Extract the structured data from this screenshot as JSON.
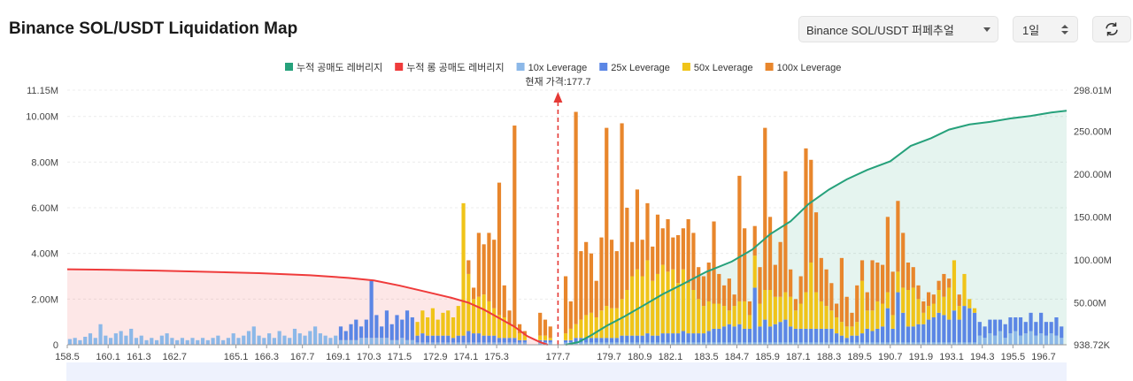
{
  "header": {
    "title": "Binance SOL/USDT Liquidation Map",
    "market_select": "Binance SOL/USDT 퍼페추얼",
    "range_select": "1일",
    "refresh_icon": "refresh-icon"
  },
  "colors": {
    "short_cum": "#26a17b",
    "long_cum": "#ef3b3b",
    "lev10": "#8cb8e8",
    "lev25": "#5b86e5",
    "lev50": "#f0c419",
    "lev100": "#e8862c",
    "current_price": "#e53935"
  },
  "chart_data": {
    "type": "bar",
    "legend_position": "top-center",
    "current_price_label": "현재 가격:177.7",
    "current_price": 177.7,
    "x_range": [
      158.5,
      197.6
    ],
    "x_ticks": [
      "158.5",
      "160.1",
      "161.3",
      "162.7",
      "165.1",
      "166.3",
      "167.7",
      "169.1",
      "170.3",
      "171.5",
      "172.9",
      "174.1",
      "175.3",
      "177.7",
      "179.7",
      "180.9",
      "182.1",
      "183.5",
      "184.7",
      "185.9",
      "187.1",
      "188.3",
      "189.5",
      "190.7",
      "191.9",
      "193.1",
      "194.3",
      "195.5",
      "196.7"
    ],
    "y_left": {
      "ticks": [
        "0",
        "2.00M",
        "4.00M",
        "6.00M",
        "8.00M",
        "10.00M",
        "11.15M"
      ],
      "range": [
        0,
        11150000
      ]
    },
    "y_right": {
      "ticks": [
        "938.72K",
        "50.00M",
        "100.00M",
        "150.00M",
        "200.00M",
        "250.00M",
        "298.01M"
      ],
      "range": [
        938720,
        298010000
      ]
    },
    "legend": [
      {
        "key": "short_cum",
        "label": "누적 공매도 레버리지"
      },
      {
        "key": "long_cum",
        "label": "누적 롱 공매도 레버리지"
      },
      {
        "key": "lev10",
        "label": "10x Leverage"
      },
      {
        "key": "lev25",
        "label": "25x Leverage"
      },
      {
        "key": "lev50",
        "label": "50x Leverage"
      },
      {
        "key": "lev100",
        "label": "100x Leverage"
      }
    ],
    "bars": [
      [
        158.6,
        0.25,
        0,
        0,
        0
      ],
      [
        158.8,
        0.3,
        0,
        0,
        0
      ],
      [
        159.0,
        0.2,
        0,
        0,
        0
      ],
      [
        159.2,
        0.35,
        0,
        0,
        0
      ],
      [
        159.4,
        0.5,
        0,
        0,
        0
      ],
      [
        159.6,
        0.3,
        0,
        0,
        0
      ],
      [
        159.8,
        0.9,
        0,
        0,
        0
      ],
      [
        160.0,
        0.4,
        0,
        0,
        0
      ],
      [
        160.2,
        0.3,
        0,
        0,
        0
      ],
      [
        160.4,
        0.5,
        0,
        0,
        0
      ],
      [
        160.6,
        0.6,
        0,
        0,
        0
      ],
      [
        160.8,
        0.4,
        0,
        0,
        0
      ],
      [
        161.0,
        0.7,
        0,
        0,
        0
      ],
      [
        161.2,
        0.3,
        0,
        0,
        0
      ],
      [
        161.4,
        0.4,
        0,
        0,
        0
      ],
      [
        161.6,
        0.2,
        0,
        0,
        0
      ],
      [
        161.8,
        0.3,
        0,
        0,
        0
      ],
      [
        162.0,
        0.2,
        0,
        0,
        0
      ],
      [
        162.2,
        0.4,
        0,
        0,
        0
      ],
      [
        162.4,
        0.5,
        0,
        0,
        0
      ],
      [
        162.6,
        0.3,
        0,
        0,
        0
      ],
      [
        162.8,
        0.2,
        0,
        0,
        0
      ],
      [
        163.0,
        0.3,
        0,
        0,
        0
      ],
      [
        163.2,
        0.2,
        0,
        0,
        0
      ],
      [
        163.4,
        0.3,
        0,
        0,
        0
      ],
      [
        163.6,
        0.2,
        0,
        0,
        0
      ],
      [
        163.8,
        0.3,
        0,
        0,
        0
      ],
      [
        164.0,
        0.2,
        0,
        0,
        0
      ],
      [
        164.2,
        0.3,
        0,
        0,
        0
      ],
      [
        164.4,
        0.4,
        0,
        0,
        0
      ],
      [
        164.6,
        0.2,
        0,
        0,
        0
      ],
      [
        164.8,
        0.3,
        0,
        0,
        0
      ],
      [
        165.0,
        0.5,
        0,
        0,
        0
      ],
      [
        165.2,
        0.3,
        0,
        0,
        0
      ],
      [
        165.4,
        0.4,
        0,
        0,
        0
      ],
      [
        165.6,
        0.6,
        0,
        0,
        0
      ],
      [
        165.8,
        0.8,
        0,
        0,
        0
      ],
      [
        166.0,
        0.4,
        0,
        0,
        0
      ],
      [
        166.2,
        0.3,
        0,
        0,
        0
      ],
      [
        166.4,
        0.5,
        0,
        0,
        0
      ],
      [
        166.6,
        0.3,
        0,
        0,
        0
      ],
      [
        166.8,
        0.6,
        0,
        0,
        0
      ],
      [
        167.0,
        0.4,
        0,
        0,
        0
      ],
      [
        167.2,
        0.3,
        0,
        0,
        0
      ],
      [
        167.4,
        0.7,
        0,
        0,
        0
      ],
      [
        167.6,
        0.5,
        0,
        0,
        0
      ],
      [
        167.8,
        0.4,
        0,
        0,
        0
      ],
      [
        168.0,
        0.6,
        0,
        0,
        0
      ],
      [
        168.2,
        0.8,
        0,
        0,
        0
      ],
      [
        168.4,
        0.5,
        0,
        0,
        0
      ],
      [
        168.6,
        0.4,
        0,
        0,
        0
      ],
      [
        168.8,
        0.3,
        0,
        0,
        0
      ],
      [
        169.0,
        0.4,
        0,
        0,
        0
      ],
      [
        169.2,
        0.2,
        0.6,
        0,
        0
      ],
      [
        169.4,
        0.2,
        0.4,
        0,
        0
      ],
      [
        169.6,
        0.2,
        0.7,
        0,
        0
      ],
      [
        169.8,
        0.2,
        0.9,
        0,
        0
      ],
      [
        170.0,
        0.3,
        0.5,
        0,
        0
      ],
      [
        170.2,
        0.3,
        0.8,
        0,
        0
      ],
      [
        170.4,
        0.3,
        2.5,
        0,
        0
      ],
      [
        170.6,
        0.3,
        1.0,
        0,
        0
      ],
      [
        170.8,
        0.3,
        0.5,
        0,
        0
      ],
      [
        171.0,
        0.3,
        1.2,
        0,
        0
      ],
      [
        171.2,
        0.2,
        0.7,
        0,
        0
      ],
      [
        171.4,
        0.2,
        1.1,
        0,
        0
      ],
      [
        171.6,
        0.3,
        0.8,
        0,
        0
      ],
      [
        171.8,
        0.2,
        1.3,
        0,
        0
      ],
      [
        172.0,
        0.2,
        1.0,
        0,
        0
      ],
      [
        172.2,
        0.1,
        0.3,
        0.6,
        0
      ],
      [
        172.4,
        0.1,
        0.4,
        1.0,
        0
      ],
      [
        172.6,
        0.1,
        0.3,
        0.8,
        0
      ],
      [
        172.8,
        0.1,
        0.3,
        1.2,
        0
      ],
      [
        173.0,
        0.1,
        0.3,
        0.7,
        0
      ],
      [
        173.2,
        0.1,
        0.3,
        1.0,
        0
      ],
      [
        173.4,
        0.1,
        0.3,
        1.1,
        0
      ],
      [
        173.6,
        0.1,
        0.2,
        0.9,
        0
      ],
      [
        173.8,
        0.1,
        0.3,
        1.3,
        0
      ],
      [
        174.0,
        0.1,
        0.3,
        5.8,
        0
      ],
      [
        174.2,
        0.1,
        0.5,
        2.5,
        0.6
      ],
      [
        174.4,
        0.1,
        0.4,
        1.5,
        0.5
      ],
      [
        174.6,
        0.1,
        0.4,
        1.6,
        2.8
      ],
      [
        174.8,
        0.1,
        0.3,
        1.8,
        2.2
      ],
      [
        175.0,
        0.1,
        0.3,
        1.5,
        3.0
      ],
      [
        175.2,
        0.1,
        0.3,
        1.2,
        3.0
      ],
      [
        175.4,
        0.1,
        0.2,
        1.0,
        5.8
      ],
      [
        175.6,
        0.1,
        0.2,
        0.9,
        1.4
      ],
      [
        175.8,
        0.1,
        0.2,
        0.6,
        0.6
      ],
      [
        176.0,
        0.1,
        0.2,
        0.5,
        8.8
      ],
      [
        176.2,
        0.1,
        0.1,
        0.3,
        0.4
      ],
      [
        176.4,
        0.1,
        0.1,
        0.2,
        0.2
      ],
      [
        177.0,
        0.1,
        0.1,
        0.2,
        1.0
      ],
      [
        177.2,
        0.1,
        0.1,
        0.2,
        0.7
      ],
      [
        177.4,
        0.1,
        0.1,
        0.1,
        0.5
      ],
      [
        178.0,
        0.1,
        0.1,
        0.3,
        2.5
      ],
      [
        178.2,
        0.1,
        0.1,
        0.5,
        1.2
      ],
      [
        178.4,
        0.1,
        0.2,
        0.6,
        9.3
      ],
      [
        178.6,
        0.1,
        0.2,
        0.8,
        3.0
      ],
      [
        178.8,
        0.1,
        0.2,
        1.0,
        3.2
      ],
      [
        179.0,
        0.1,
        0.2,
        1.1,
        2.6
      ],
      [
        179.2,
        0.1,
        0.2,
        0.9,
        1.6
      ],
      [
        179.4,
        0.1,
        0.2,
        1.2,
        3.2
      ],
      [
        179.6,
        0.1,
        0.2,
        1.4,
        7.8
      ],
      [
        179.8,
        0.1,
        0.2,
        1.3,
        3.0
      ],
      [
        180.0,
        0.1,
        0.2,
        1.3,
        2.5
      ],
      [
        180.2,
        0.1,
        0.3,
        1.6,
        7.7
      ],
      [
        180.4,
        0.1,
        0.3,
        2.0,
        3.6
      ],
      [
        180.6,
        0.1,
        0.3,
        2.6,
        1.5
      ],
      [
        180.8,
        0.1,
        0.3,
        2.9,
        3.5
      ],
      [
        181.0,
        0.1,
        0.3,
        2.6,
        1.6
      ],
      [
        181.2,
        0.1,
        0.4,
        3.2,
        2.5
      ],
      [
        181.4,
        0.1,
        0.3,
        2.4,
        1.5
      ],
      [
        181.6,
        0.1,
        0.3,
        2.7,
        2.6
      ],
      [
        181.8,
        0.1,
        0.4,
        3.0,
        1.6
      ],
      [
        182.0,
        0.1,
        0.4,
        2.7,
        2.3
      ],
      [
        182.2,
        0.1,
        0.4,
        2.8,
        1.4
      ],
      [
        182.4,
        0.1,
        0.4,
        2.2,
        2.1
      ],
      [
        182.6,
        0.1,
        0.5,
        2.7,
        1.8
      ],
      [
        182.8,
        0.1,
        0.4,
        2.2,
        2.8
      ],
      [
        183.0,
        0.1,
        0.4,
        1.9,
        2.5
      ],
      [
        183.2,
        0.1,
        0.4,
        1.5,
        1.4
      ],
      [
        183.4,
        0.1,
        0.4,
        1.2,
        1.3
      ],
      [
        183.6,
        0.1,
        0.5,
        1.3,
        1.7
      ],
      [
        183.8,
        0.1,
        0.6,
        1.1,
        3.6
      ],
      [
        184.0,
        0.1,
        0.6,
        1.1,
        1.3
      ],
      [
        184.2,
        0.1,
        0.7,
        0.9,
        0.9
      ],
      [
        184.4,
        0.1,
        0.8,
        0.6,
        1.4
      ],
      [
        184.6,
        0.1,
        0.7,
        0.9,
        0.5
      ],
      [
        184.8,
        0.1,
        0.8,
        1.0,
        5.5
      ],
      [
        185.0,
        0.1,
        0.6,
        1.2,
        3.2
      ],
      [
        185.2,
        0.1,
        0.6,
        0.6,
        0.6
      ],
      [
        185.4,
        0.1,
        2.4,
        1.4,
        1.3
      ],
      [
        185.6,
        0.1,
        0.7,
        1.0,
        1.6
      ],
      [
        185.8,
        0.1,
        1.0,
        1.3,
        7.1
      ],
      [
        186.0,
        0.1,
        0.7,
        1.6,
        3.2
      ],
      [
        186.2,
        0.1,
        0.8,
        1.2,
        1.4
      ],
      [
        186.4,
        0.1,
        0.9,
        1.1,
        2.4
      ],
      [
        186.6,
        0.1,
        1.0,
        1.2,
        5.3
      ],
      [
        186.8,
        0.1,
        0.7,
        1.3,
        1.2
      ],
      [
        187.0,
        0.1,
        0.6,
        0.8,
        0.5
      ],
      [
        187.2,
        0.1,
        0.6,
        1.1,
        1.2
      ],
      [
        187.4,
        0.1,
        0.6,
        1.6,
        6.3
      ],
      [
        187.6,
        0.1,
        0.6,
        2.9,
        4.5
      ],
      [
        187.8,
        0.1,
        0.6,
        1.6,
        3.5
      ],
      [
        188.0,
        0.1,
        0.6,
        1.2,
        1.9
      ],
      [
        188.2,
        0.1,
        0.6,
        1.0,
        1.6
      ],
      [
        188.4,
        0.1,
        0.6,
        0.8,
        1.2
      ],
      [
        188.6,
        0.1,
        0.4,
        0.7,
        0.6
      ],
      [
        188.8,
        0.1,
        0.3,
        0.6,
        2.8
      ],
      [
        189.0,
        0.1,
        0.2,
        0.5,
        1.3
      ],
      [
        189.2,
        0.1,
        0.3,
        0.4,
        0.6
      ],
      [
        189.4,
        0.1,
        0.3,
        0.6,
        1.6
      ],
      [
        189.6,
        0.1,
        0.4,
        2.3,
        0.9
      ],
      [
        189.8,
        0.1,
        0.6,
        0.8,
        0.8
      ],
      [
        190.0,
        0.1,
        0.5,
        0.9,
        2.2
      ],
      [
        190.2,
        0.1,
        0.6,
        1.2,
        1.7
      ],
      [
        190.4,
        0.1,
        0.7,
        1.0,
        1.7
      ],
      [
        190.6,
        0.1,
        1.5,
        0.7,
        3.3
      ],
      [
        190.8,
        0.1,
        0.6,
        0.6,
        1.9
      ],
      [
        191.0,
        0.1,
        2.2,
        0.9,
        3.1
      ],
      [
        191.2,
        0.1,
        1.3,
        1.1,
        2.4
      ],
      [
        191.4,
        0.1,
        0.7,
        1.6,
        1.2
      ],
      [
        191.6,
        0.1,
        0.7,
        1.7,
        0.9
      ],
      [
        191.8,
        0.1,
        0.8,
        1.1,
        0.6
      ],
      [
        192.0,
        0.1,
        0.8,
        0.5,
        0.5
      ],
      [
        192.2,
        0.1,
        1.0,
        0.6,
        0.6
      ],
      [
        192.4,
        0.1,
        1.1,
        0.6,
        0.4
      ],
      [
        192.6,
        0.1,
        1.3,
        1.0,
        0.4
      ],
      [
        192.8,
        0.1,
        1.2,
        0.8,
        1.0
      ],
      [
        193.0,
        0.1,
        1.0,
        1.4,
        0.4
      ],
      [
        193.2,
        0.1,
        1.4,
        2.2,
        0.0
      ],
      [
        193.4,
        0.1,
        1.0,
        0.6,
        0.5
      ],
      [
        193.6,
        0.1,
        1.6,
        1.4,
        0.0
      ],
      [
        193.8,
        0.1,
        1.5,
        0.4,
        0.0
      ],
      [
        194.0,
        0.1,
        1.3,
        0.2,
        0.0
      ],
      [
        194.2,
        0.4,
        0.6,
        0,
        0
      ],
      [
        194.4,
        0.3,
        0.5,
        0,
        0
      ],
      [
        194.6,
        0.5,
        0.6,
        0,
        0
      ],
      [
        194.8,
        0.4,
        0.7,
        0,
        0
      ],
      [
        195.0,
        0.6,
        0.5,
        0,
        0
      ],
      [
        195.2,
        0.3,
        0.6,
        0,
        0
      ],
      [
        195.4,
        0.5,
        0.7,
        0,
        0
      ],
      [
        195.6,
        0.6,
        0.6,
        0,
        0
      ],
      [
        195.8,
        0.4,
        0.8,
        0,
        0
      ],
      [
        196.0,
        0.5,
        0.5,
        0,
        0
      ],
      [
        196.2,
        0.6,
        0.8,
        0,
        0
      ],
      [
        196.4,
        0.4,
        0.6,
        0,
        0
      ],
      [
        196.6,
        0.5,
        0.9,
        0,
        0
      ],
      [
        196.8,
        0.4,
        0.6,
        0,
        0
      ],
      [
        197.0,
        0.5,
        0.5,
        0,
        0
      ],
      [
        197.2,
        0.4,
        0.8,
        0,
        0
      ],
      [
        197.4,
        0.3,
        0.5,
        0,
        0
      ]
    ],
    "long_cum_line": [
      [
        158.5,
        89000000.0
      ],
      [
        160.0,
        88500000.0
      ],
      [
        162.0,
        87500000.0
      ],
      [
        164.0,
        86000000.0
      ],
      [
        166.0,
        84500000.0
      ],
      [
        168.0,
        82000000.0
      ],
      [
        169.5,
        79000000.0
      ],
      [
        170.5,
        76000000.0
      ],
      [
        171.5,
        70000000.0
      ],
      [
        172.5,
        63000000.0
      ],
      [
        173.5,
        56000000.0
      ],
      [
        174.2,
        50000000.0
      ],
      [
        174.8,
        42000000.0
      ],
      [
        175.4,
        32000000.0
      ],
      [
        176.0,
        22000000.0
      ],
      [
        176.5,
        11000000.0
      ],
      [
        177.0,
        4000000.0
      ],
      [
        177.3,
        940000.0
      ]
    ],
    "short_cum_line": [
      [
        178.0,
        940000.0
      ],
      [
        178.5,
        4000000.0
      ],
      [
        179.0,
        12000000.0
      ],
      [
        179.6,
        23000000.0
      ],
      [
        180.3,
        34000000.0
      ],
      [
        181.0,
        46000000.0
      ],
      [
        181.8,
        60000000.0
      ],
      [
        182.6,
        72000000.0
      ],
      [
        183.5,
        86000000.0
      ],
      [
        184.5,
        98000000.0
      ],
      [
        185.3,
        112000000.0
      ],
      [
        186.0,
        130000000.0
      ],
      [
        186.8,
        145000000.0
      ],
      [
        187.5,
        165000000.0
      ],
      [
        188.3,
        182000000.0
      ],
      [
        189.0,
        194000000.0
      ],
      [
        189.8,
        205000000.0
      ],
      [
        190.7,
        215000000.0
      ],
      [
        191.5,
        233000000.0
      ],
      [
        192.3,
        242000000.0
      ],
      [
        193.0,
        252000000.0
      ],
      [
        193.8,
        258000000.0
      ],
      [
        194.6,
        261000000.0
      ],
      [
        195.4,
        265000000.0
      ],
      [
        196.2,
        268000000.0
      ],
      [
        197.0,
        272000000.0
      ],
      [
        197.6,
        274000000.0
      ]
    ]
  }
}
